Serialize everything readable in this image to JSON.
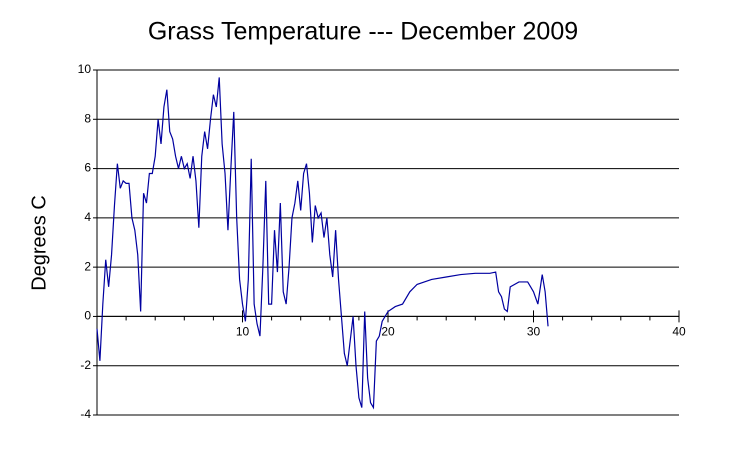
{
  "chart_data": {
    "type": "line",
    "title": "Grass Temperature --- December 2009",
    "y_label": "Degrees C",
    "xlim": [
      0,
      40
    ],
    "xticks": [
      10,
      20,
      30,
      40
    ],
    "xminor_ticks": [
      2,
      4,
      6,
      8,
      12,
      14,
      16,
      18,
      22,
      24,
      26,
      28,
      32,
      34,
      36,
      38
    ],
    "ylim": [
      -4,
      10
    ],
    "yticks": [
      -4,
      -2,
      0,
      2,
      4,
      6,
      8,
      10
    ],
    "grid": true,
    "series": [
      {
        "color": "#0000a0",
        "x": [
          0.0,
          0.2,
          0.4,
          0.6,
          0.8,
          1.0,
          1.2,
          1.4,
          1.6,
          1.8,
          2.0,
          2.2,
          2.4,
          2.6,
          2.8,
          3.0,
          3.2,
          3.4,
          3.6,
          3.8,
          4.0,
          4.2,
          4.4,
          4.6,
          4.8,
          5.0,
          5.2,
          5.4,
          5.6,
          5.8,
          6.0,
          6.2,
          6.4,
          6.6,
          6.8,
          7.0,
          7.2,
          7.4,
          7.6,
          7.8,
          8.0,
          8.2,
          8.4,
          8.6,
          8.8,
          9.0,
          9.2,
          9.4,
          9.6,
          9.8,
          10.0,
          10.2,
          10.4,
          10.6,
          10.8,
          11.0,
          11.2,
          11.4,
          11.6,
          11.8,
          12.0,
          12.2,
          12.4,
          12.6,
          12.8,
          13.0,
          13.2,
          13.4,
          13.6,
          13.8,
          14.0,
          14.2,
          14.4,
          14.6,
          14.8,
          15.0,
          15.2,
          15.4,
          15.6,
          15.8,
          16.0,
          16.2,
          16.4,
          16.6,
          16.8,
          17.0,
          17.2,
          17.4,
          17.6,
          17.8,
          18.0,
          18.2,
          18.4,
          18.6,
          18.8,
          19.0,
          19.2,
          19.4,
          19.6,
          19.8,
          20.0,
          20.5,
          21.0,
          21.5,
          22.0,
          23.0,
          24.0,
          25.0,
          26.0,
          27.0,
          27.4,
          27.6,
          27.8,
          28.0,
          28.2,
          28.4,
          29.0,
          29.6,
          29.8,
          30.0,
          30.3,
          30.6,
          30.8,
          31.0
        ],
        "values": [
          -0.5,
          -1.8,
          0.5,
          2.3,
          1.2,
          2.5,
          4.5,
          6.2,
          5.2,
          5.5,
          5.4,
          5.4,
          4.0,
          3.5,
          2.5,
          0.2,
          5.0,
          4.6,
          5.8,
          5.8,
          6.5,
          8.0,
          7.0,
          8.5,
          9.2,
          7.5,
          7.2,
          6.5,
          6.0,
          6.5,
          6.0,
          6.2,
          5.6,
          6.5,
          5.5,
          3.6,
          6.5,
          7.5,
          6.8,
          8.0,
          9.0,
          8.5,
          9.7,
          7.0,
          5.8,
          3.5,
          6.0,
          8.3,
          4.0,
          1.5,
          0.5,
          -0.2,
          1.5,
          6.4,
          0.5,
          -0.3,
          -0.8,
          2.0,
          5.5,
          0.5,
          0.5,
          3.5,
          1.8,
          4.6,
          1.0,
          0.5,
          2.0,
          4.0,
          4.6,
          5.5,
          4.3,
          5.8,
          6.2,
          5.0,
          3.0,
          4.5,
          4.0,
          4.2,
          3.2,
          4.0,
          2.5,
          1.6,
          3.5,
          1.5,
          0.0,
          -1.5,
          -2.0,
          -1.0,
          0.0,
          -2.0,
          -3.3,
          -3.7,
          0.2,
          -2.5,
          -3.5,
          -3.7,
          -1.0,
          -0.8,
          -0.2,
          0.0,
          0.2,
          0.4,
          0.5,
          1.0,
          1.3,
          1.5,
          1.6,
          1.7,
          1.75,
          1.75,
          1.8,
          1.0,
          0.8,
          0.3,
          0.2,
          1.2,
          1.4,
          1.4,
          1.2,
          1.0,
          0.5,
          1.7,
          1.0,
          -0.4
        ]
      }
    ]
  }
}
